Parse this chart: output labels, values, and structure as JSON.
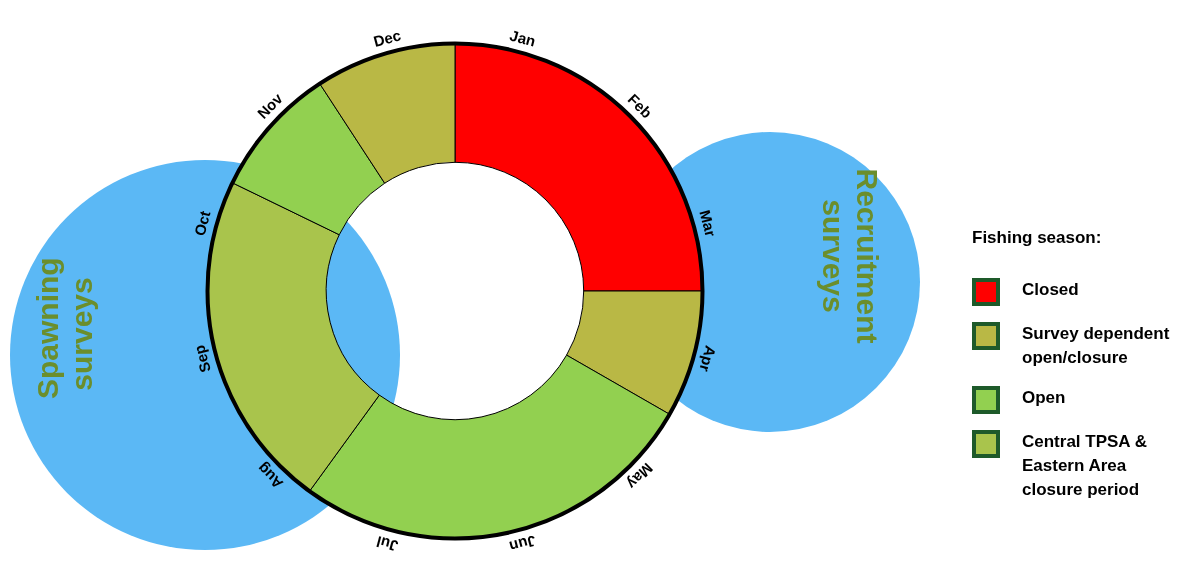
{
  "chart_data": {
    "type": "donut",
    "legend_title": "Fishing season:",
    "categories": [
      "Closed",
      "Survey dependent open/closure",
      "Open",
      "Central TPSA & Eastern Area closure period",
      null,
      null
    ],
    "values": [
      25,
      8.3,
      26.7,
      22.2,
      8.6,
      9.2
    ],
    "colors": [
      "#ff0000",
      "#b9b845",
      "#92d050",
      "#a9c44c",
      "#92d050",
      "#b9b845"
    ],
    "legend": "right",
    "annotations": [
      "Jan",
      "Feb",
      "Mar",
      "Apr",
      "May",
      "Jun",
      "Jul",
      "Aug",
      "Sep",
      "Oct",
      "Nov",
      "Dec",
      "Spawning surveys",
      "Recruitment surveys"
    ]
  }
}
